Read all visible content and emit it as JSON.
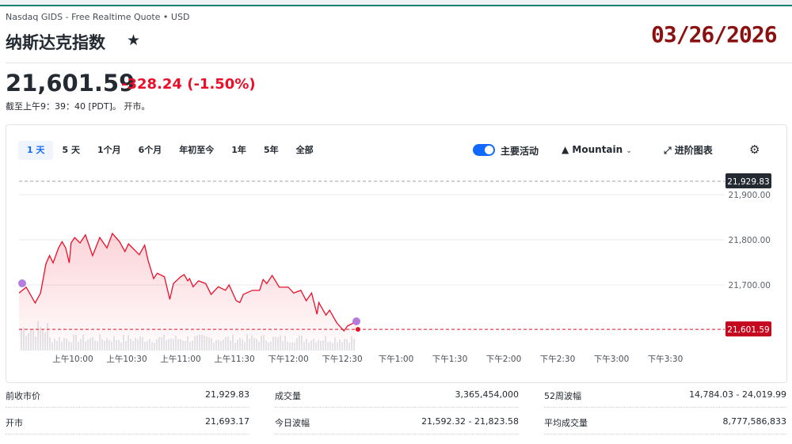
{
  "header": {
    "exchange": "Nasdaq GIDS - Free Realtime Quote • USD",
    "title": "纳斯达克指数",
    "star_icon": "star-icon",
    "date_overlay": "03/26/2026",
    "price": "21,601.59",
    "change": "-328.24",
    "change_pct": "(-1.50%)",
    "as_of": "截至上午9：39：40 [PDT]。 开市。"
  },
  "colors": {
    "up_down_red": "#eb0f29",
    "accent": "#0f69ff",
    "date_overlay": "#8b1010"
  },
  "toolbar": {
    "ranges": [
      "1 天",
      "5 天",
      "1个月",
      "6个月",
      "年初至今",
      "1年",
      "5年",
      "全部"
    ],
    "active_range": 0,
    "key_events_label": "主要活动",
    "key_events_on": true,
    "chart_type": "Mountain",
    "advanced_label": "进阶图表",
    "settings_icon": "gear-icon"
  },
  "chart_data": {
    "type": "area",
    "x_ticks": [
      "上午10:00",
      "上午10:30",
      "上午11:00",
      "上午11:30",
      "下午12:00",
      "下午12:30",
      "下午1:00",
      "下午1:30",
      "下午2:00",
      "下午2:30",
      "下午3:00",
      "下午3:30"
    ],
    "y_ticks": [
      "21,900.00",
      "21,800.00",
      "21,700.00"
    ],
    "previous_close": 21929.83,
    "previous_close_label": "21,929.83",
    "current_label": "21,601.59",
    "current": 21601.59,
    "x_range": [
      "09:30",
      "16:00"
    ],
    "grid": true,
    "x": [
      "09:30",
      "09:34",
      "09:39",
      "09:42",
      "09:45",
      "09:47",
      "09:49",
      "09:52",
      "09:54",
      "09:56",
      "09:58",
      "09:59",
      "10:01",
      "10:04",
      "10:07",
      "10:11",
      "10:15",
      "10:19",
      "10:22",
      "10:26",
      "10:29",
      "10:31",
      "10:37",
      "10:40",
      "10:42",
      "10:45",
      "10:47",
      "10:51",
      "10:54",
      "10:56",
      "11:00",
      "11:02",
      "11:04",
      "11:05",
      "11:07",
      "11:10",
      "11:14",
      "11:17",
      "11:21",
      "11:25",
      "11:27",
      "11:31",
      "11:33",
      "11:35",
      "11:40",
      "11:44",
      "11:46",
      "11:48",
      "11:51",
      "11:55",
      "12:00",
      "12:03",
      "12:07",
      "12:10",
      "12:13",
      "12:16",
      "12:17",
      "12:21",
      "12:23",
      "12:27",
      "12:31",
      "12:33",
      "12:38"
    ],
    "y": [
      21682,
      21695,
      21660,
      21682,
      21747,
      21765,
      21749,
      21782,
      21796,
      21782,
      21749,
      21793,
      21805,
      21793,
      21811,
      21765,
      21805,
      21782,
      21814,
      21796,
      21774,
      21791,
      21767,
      21788,
      21753,
      21714,
      21726,
      21718,
      21668,
      21703,
      21718,
      21723,
      21709,
      21714,
      21696,
      21709,
      21703,
      21679,
      21696,
      21688,
      21700,
      21665,
      21661,
      21679,
      21688,
      21688,
      21712,
      21703,
      21721,
      21695,
      21695,
      21682,
      21688,
      21665,
      21682,
      21635,
      21661,
      21633,
      21644,
      21616,
      21598,
      21609,
      21619
    ]
  },
  "stats": [
    [
      {
        "label": "前收市价",
        "value": "21,929.83"
      },
      {
        "label": "成交量",
        "value": "3,365,454,000"
      },
      {
        "label": "52周波幅",
        "value": "14,784.03 - 24,019.99"
      }
    ],
    [
      {
        "label": "开市",
        "value": "21,693.17"
      },
      {
        "label": "今日波幅",
        "value": "21,592.32 - 21,823.58"
      },
      {
        "label": "平均成交量",
        "value": "8,777,586,833"
      }
    ]
  ]
}
